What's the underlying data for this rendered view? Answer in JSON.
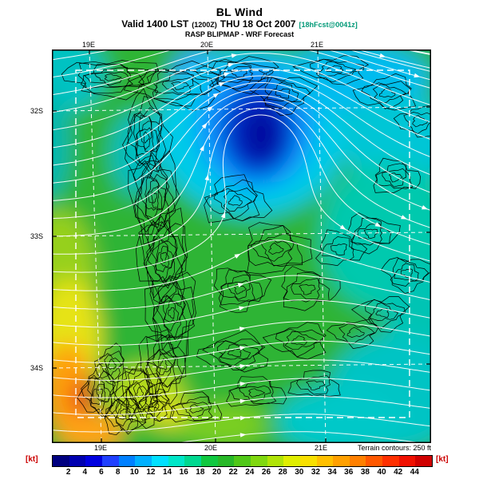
{
  "header": {
    "title": "BL Wind",
    "valid_prefix": "Valid 1400 LST",
    "valid_zulu": "(1200Z)",
    "valid_date": "THU 18 Oct 2007",
    "valid_fcst": "[18hFcst@0041z]",
    "model_line": "RASP BLIPMAP - WRF Forecast"
  },
  "map": {
    "lat_labels_left": [
      "32S",
      "33S",
      "34S"
    ],
    "lat_labels_right": [
      "32S",
      "33S",
      "34S"
    ],
    "lon_labels_top": [
      "19E",
      "20E",
      "21E"
    ],
    "lon_labels_bottom": [
      "19E",
      "20E",
      "21E"
    ],
    "terrain_note": "Terrain contours: 250 ft"
  },
  "colorbar": {
    "unit_left": "[kt]",
    "unit_right": "[kt]",
    "ticks": [
      "2",
      "4",
      "6",
      "8",
      "10",
      "12",
      "14",
      "16",
      "18",
      "20",
      "22",
      "24",
      "26",
      "28",
      "30",
      "32",
      "34",
      "36",
      "38",
      "40",
      "42",
      "44"
    ],
    "colors": [
      "#000080",
      "#0000b0",
      "#0000e0",
      "#2040ff",
      "#0080ff",
      "#00b0ff",
      "#00e0ff",
      "#00e6c8",
      "#00d890",
      "#10c840",
      "#28b828",
      "#50c818",
      "#80d810",
      "#b0e408",
      "#e0ee00",
      "#f8e000",
      "#ffc000",
      "#ffa000",
      "#ff8000",
      "#ff5800",
      "#ff3000",
      "#f01000",
      "#d00000"
    ]
  },
  "accent_colors": {
    "forecast_tag": "#009977",
    "unit_label": "#cc0000"
  }
}
